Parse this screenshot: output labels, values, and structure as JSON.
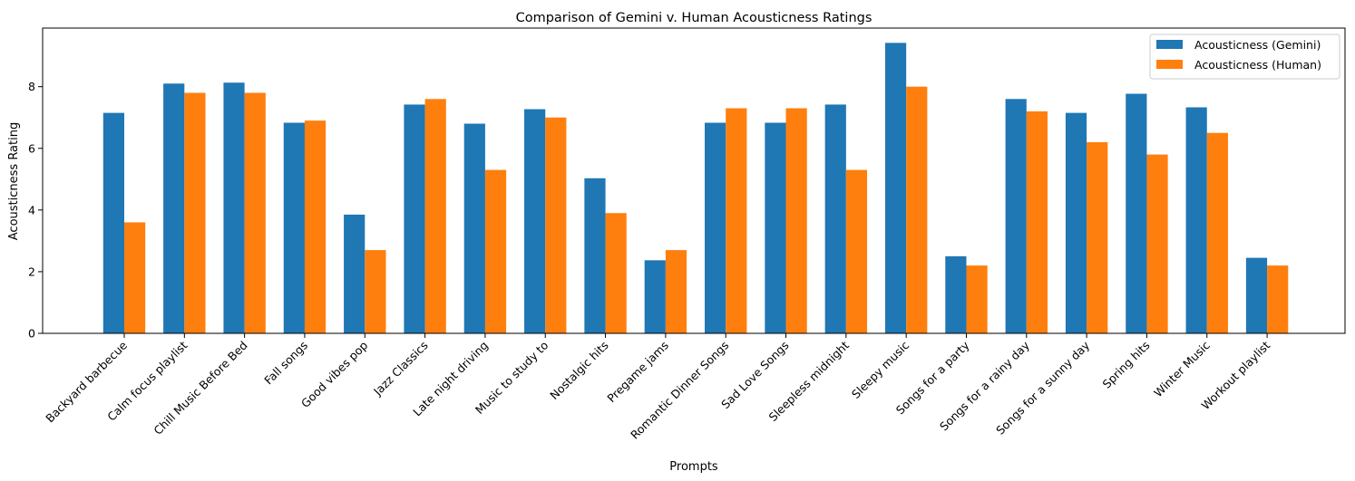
{
  "chart_data": {
    "type": "bar",
    "title": "Comparison of Gemini v. Human Acousticness Ratings",
    "xlabel": "Prompts",
    "ylabel": "Acousticness Rating",
    "ylim": [
      0,
      9.9
    ],
    "yticks": [
      0,
      2,
      4,
      6,
      8
    ],
    "grid": false,
    "legend_position": "top-right",
    "categories": [
      "Backyard barbecue",
      "Calm focus playlist",
      "Chill Music Before Bed",
      "Fall songs",
      "Good vibes pop",
      "Jazz Classics",
      "Late night driving",
      "Music to study to",
      "Nostalgic hits",
      "Pregame jams",
      "Romantic Dinner Songs",
      "Sad Love Songs",
      "Sleepless midnight",
      "Sleepy music",
      "Songs for a party",
      "Songs for a rainy day",
      "Songs for a sunny day",
      "Spring hits",
      "Winter Music",
      "Workout playlist"
    ],
    "series": [
      {
        "name": "Acousticness (Gemini)",
        "color": "#1f77b4",
        "values": [
          7.15,
          8.1,
          8.13,
          6.83,
          3.85,
          7.42,
          6.8,
          7.27,
          5.03,
          2.37,
          6.83,
          6.83,
          7.42,
          9.42,
          2.5,
          7.6,
          7.15,
          7.77,
          7.33,
          2.45
        ]
      },
      {
        "name": "Acousticness (Human)",
        "color": "#ff7f0e",
        "values": [
          3.6,
          7.8,
          7.8,
          6.9,
          2.7,
          7.6,
          5.3,
          7.0,
          3.9,
          2.7,
          7.3,
          7.3,
          5.3,
          8.0,
          2.2,
          7.2,
          6.2,
          5.8,
          6.5,
          2.2
        ]
      }
    ]
  }
}
